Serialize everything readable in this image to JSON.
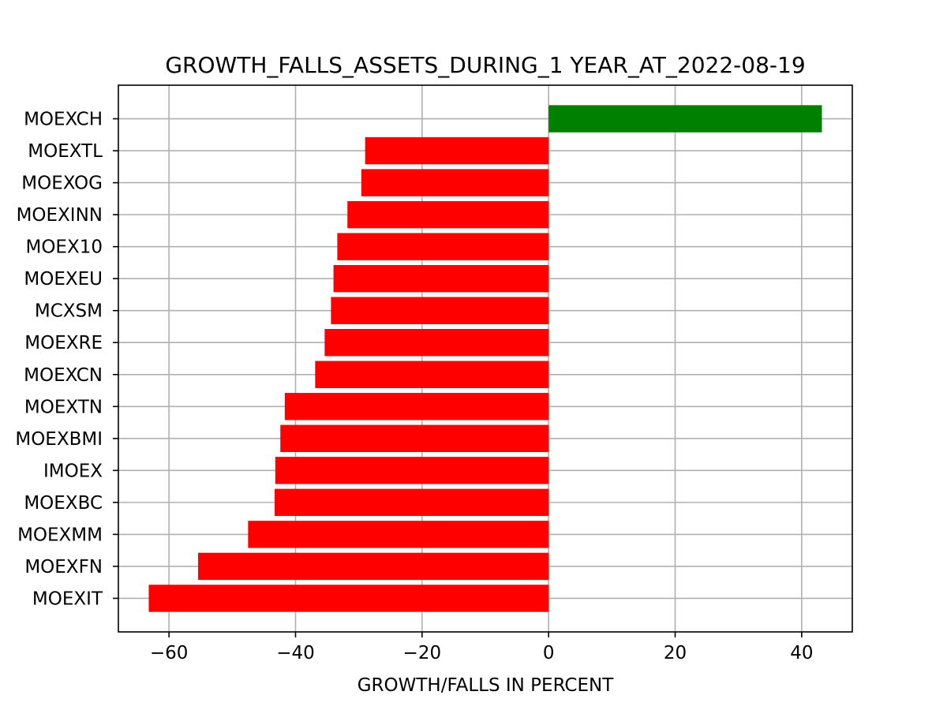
{
  "chart_data": {
    "type": "bar",
    "orientation": "horizontal",
    "title": "GROWTH_FALLS_ASSETS_DURING_1 YEAR_AT_2022-08-19",
    "xlabel": "GROWTH/FALLS IN PERCENT",
    "ylabel": "",
    "xlim": [
      -68,
      48
    ],
    "xticks": [
      -60,
      -40,
      -20,
      0,
      20,
      40
    ],
    "xtick_labels": [
      "−60",
      "−40",
      "−20",
      "0",
      "20",
      "40"
    ],
    "grid": true,
    "legend": "none",
    "colors": {
      "positive": "#008000",
      "negative": "#ff0000"
    },
    "categories": [
      "MOEXIT",
      "MOEXFN",
      "MOEXMM",
      "MOEXBC",
      "IMOEX",
      "MOEXBMI",
      "MOEXTN",
      "MOEXCN",
      "MOEXRE",
      "MCXSM",
      "MOEXEU",
      "MOEX10",
      "MOEXINN",
      "MOEXOG",
      "MOEXTL",
      "MOEXCH"
    ],
    "values": [
      -63.2,
      -55.4,
      -47.5,
      -43.3,
      -43.2,
      -42.4,
      -41.7,
      -36.9,
      -35.4,
      -34.4,
      -34.0,
      -33.4,
      -31.8,
      -29.6,
      -29.0,
      43.2
    ]
  }
}
